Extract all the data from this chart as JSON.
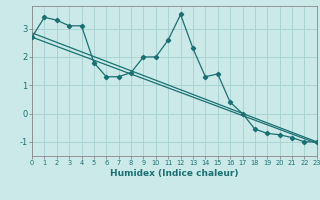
{
  "title": "",
  "xlabel": "Humidex (Indice chaleur)",
  "ylabel": "",
  "bg_color": "#cce9e9",
  "grid_color": "#aad4d4",
  "line_color": "#1a7070",
  "x_min": 0,
  "x_max": 23,
  "y_min": -1.5,
  "y_max": 3.8,
  "yticks": [
    -1,
    0,
    1,
    2,
    3
  ],
  "xticks": [
    0,
    1,
    2,
    3,
    4,
    5,
    6,
    7,
    8,
    9,
    10,
    11,
    12,
    13,
    14,
    15,
    16,
    17,
    18,
    19,
    20,
    21,
    22,
    23
  ],
  "series1_x": [
    0,
    1,
    2,
    3,
    4,
    5,
    6,
    7,
    8,
    9,
    10,
    11,
    12,
    13,
    14,
    15,
    16,
    17,
    18,
    19,
    20,
    21,
    22,
    23
  ],
  "series1_y": [
    2.7,
    3.4,
    3.3,
    3.1,
    3.1,
    1.8,
    1.3,
    1.3,
    1.45,
    2.0,
    2.0,
    2.6,
    3.5,
    2.3,
    1.3,
    1.4,
    0.4,
    0.0,
    -0.55,
    -0.7,
    -0.75,
    -0.85,
    -1.0,
    -1.0
  ],
  "series2_x": [
    0,
    23
  ],
  "series2_y": [
    2.85,
    -1.0
  ],
  "series3_x": [
    0,
    23
  ],
  "series3_y": [
    2.7,
    -1.05
  ]
}
